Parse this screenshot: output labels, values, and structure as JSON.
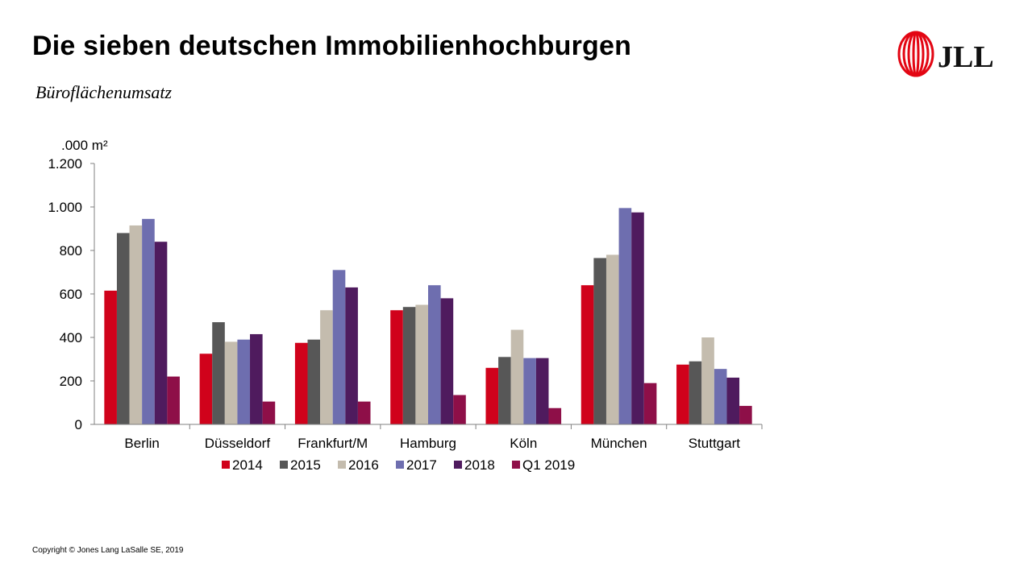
{
  "slide": {
    "title": "Die sieben deutschen Immobilienhochburgen",
    "subtitle": "Büroflächenumsatz",
    "copyright": "Copyright © Jones Lang LaSalle SE, 2019",
    "logo_text": "JLL"
  },
  "colors": {
    "brand_red": "#E30613"
  },
  "chart_data": {
    "type": "bar",
    "title": "Büroflächenumsatz",
    "ylabel": ".000 m²",
    "ylim": [
      0,
      1200
    ],
    "yticks": [
      0,
      200,
      400,
      600,
      800,
      1000,
      1200
    ],
    "ytick_labels": [
      "0",
      "200",
      "400",
      "600",
      "800",
      "1.000",
      "1.200"
    ],
    "grid": false,
    "legend_position": "bottom",
    "categories": [
      "Berlin",
      "Düsseldorf",
      "Frankfurt/M",
      "Hamburg",
      "Köln",
      "München",
      "Stuttgart"
    ],
    "series": [
      {
        "name": "2014",
        "color": "#D0021B",
        "values": [
          615,
          325,
          375,
          525,
          260,
          640,
          275
        ]
      },
      {
        "name": "2015",
        "color": "#575757",
        "values": [
          880,
          470,
          390,
          540,
          310,
          765,
          290
        ]
      },
      {
        "name": "2016",
        "color": "#C4BCAE",
        "values": [
          915,
          380,
          525,
          550,
          435,
          780,
          400
        ]
      },
      {
        "name": "2017",
        "color": "#6E6EAF",
        "values": [
          945,
          390,
          710,
          640,
          305,
          995,
          255
        ]
      },
      {
        "name": "2018",
        "color": "#4F1B5E",
        "values": [
          840,
          415,
          630,
          580,
          305,
          975,
          215
        ]
      },
      {
        "name": "Q1 2019",
        "color": "#8E0F48",
        "values": [
          220,
          105,
          105,
          135,
          75,
          190,
          85
        ]
      }
    ]
  }
}
